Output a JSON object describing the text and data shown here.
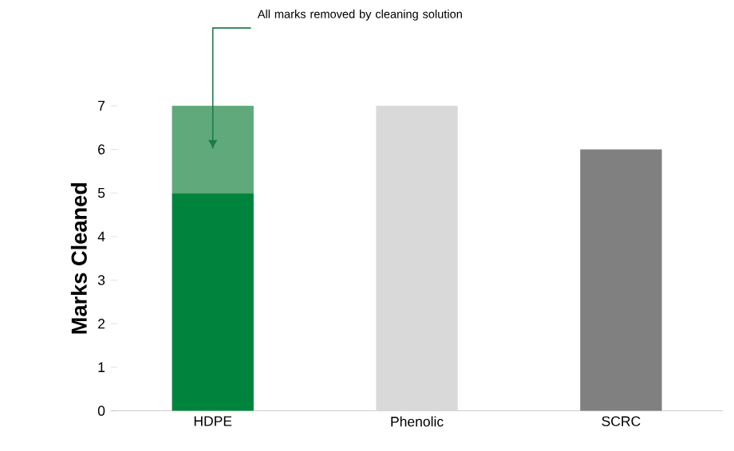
{
  "chart_data": {
    "type": "bar",
    "stacked": true,
    "ylabel": "Marks Cleaned",
    "categories": [
      "HDPE",
      "Phenolic",
      "SCRC"
    ],
    "series": [
      {
        "colors": [
          "#00843d",
          "#d9d9d9",
          "#808080"
        ],
        "values": [
          5,
          7,
          6
        ]
      },
      {
        "color": "#5fa97b",
        "values": [
          2,
          null,
          null
        ]
      }
    ],
    "ylim": [
      0,
      7
    ],
    "yticks": [
      0,
      1,
      2,
      3,
      4,
      5,
      6,
      7
    ],
    "annotations": [
      "All marks removed by cleaning solution"
    ]
  }
}
